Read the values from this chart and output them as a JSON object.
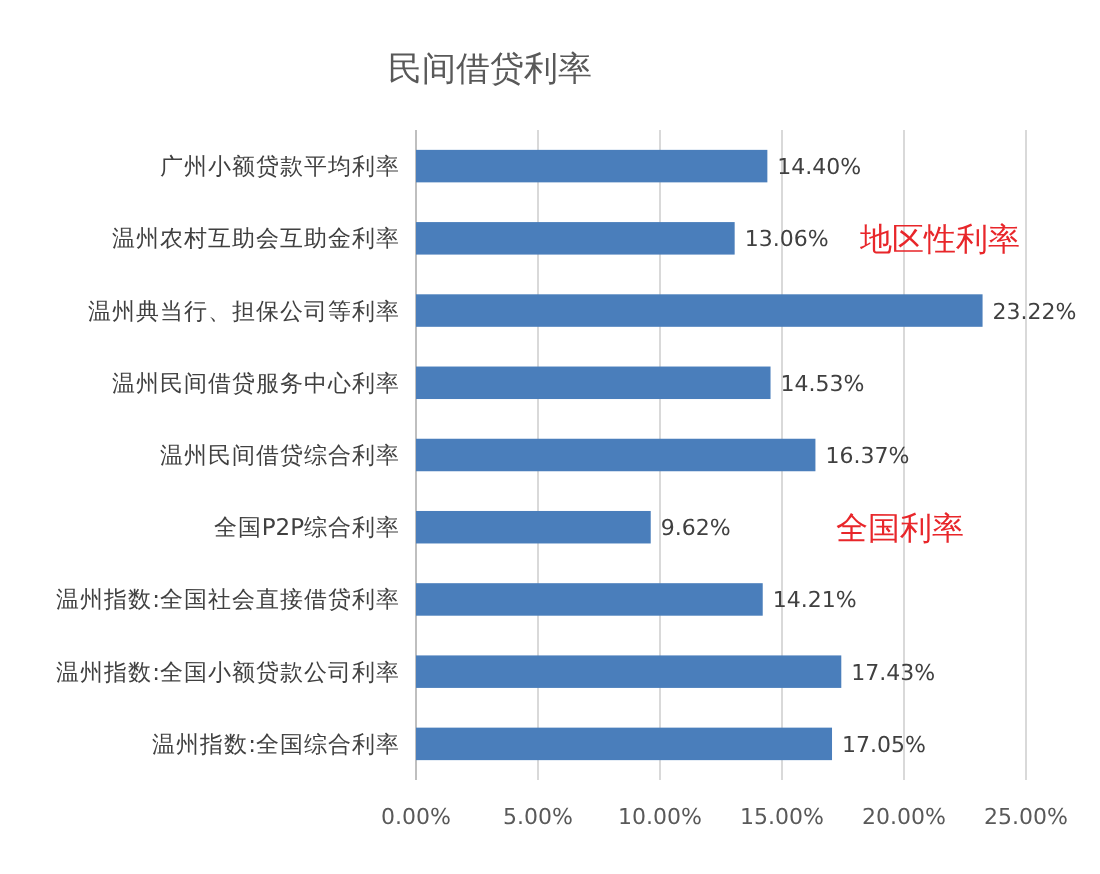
{
  "chart_data": {
    "type": "bar",
    "orientation": "horizontal",
    "title": "民间借贷利率",
    "categories": [
      "广州小额贷款平均利率",
      "温州农村互助会互助金利率",
      "温州典当行、担保公司等利率",
      "温州民间借贷服务中心利率",
      "温州民间借贷综合利率",
      "全国P2P综合利率",
      "温州指数:全国社会直接借贷利率",
      "温州指数:全国小额贷款公司利率",
      "温州指数:全国综合利率"
    ],
    "values": [
      14.4,
      13.06,
      23.22,
      14.53,
      16.37,
      9.62,
      14.21,
      17.43,
      17.05
    ],
    "value_labels": [
      "14.40%",
      "13.06%",
      "23.22%",
      "14.53%",
      "16.37%",
      "9.62%",
      "14.21%",
      "17.43%",
      "17.05%"
    ],
    "color": "#4a7ebb",
    "xlim": [
      0,
      25
    ],
    "xticks": [
      {
        "value": 0,
        "label": "0.00%"
      },
      {
        "value": 5,
        "label": "5.00%"
      },
      {
        "value": 10,
        "label": "10.00%"
      },
      {
        "value": 15,
        "label": "15.00%"
      },
      {
        "value": 20,
        "label": "20.00%"
      },
      {
        "value": 25,
        "label": "25.00%"
      }
    ],
    "grid": "x",
    "annotations": [
      "地区性利率",
      "全国利率"
    ]
  }
}
